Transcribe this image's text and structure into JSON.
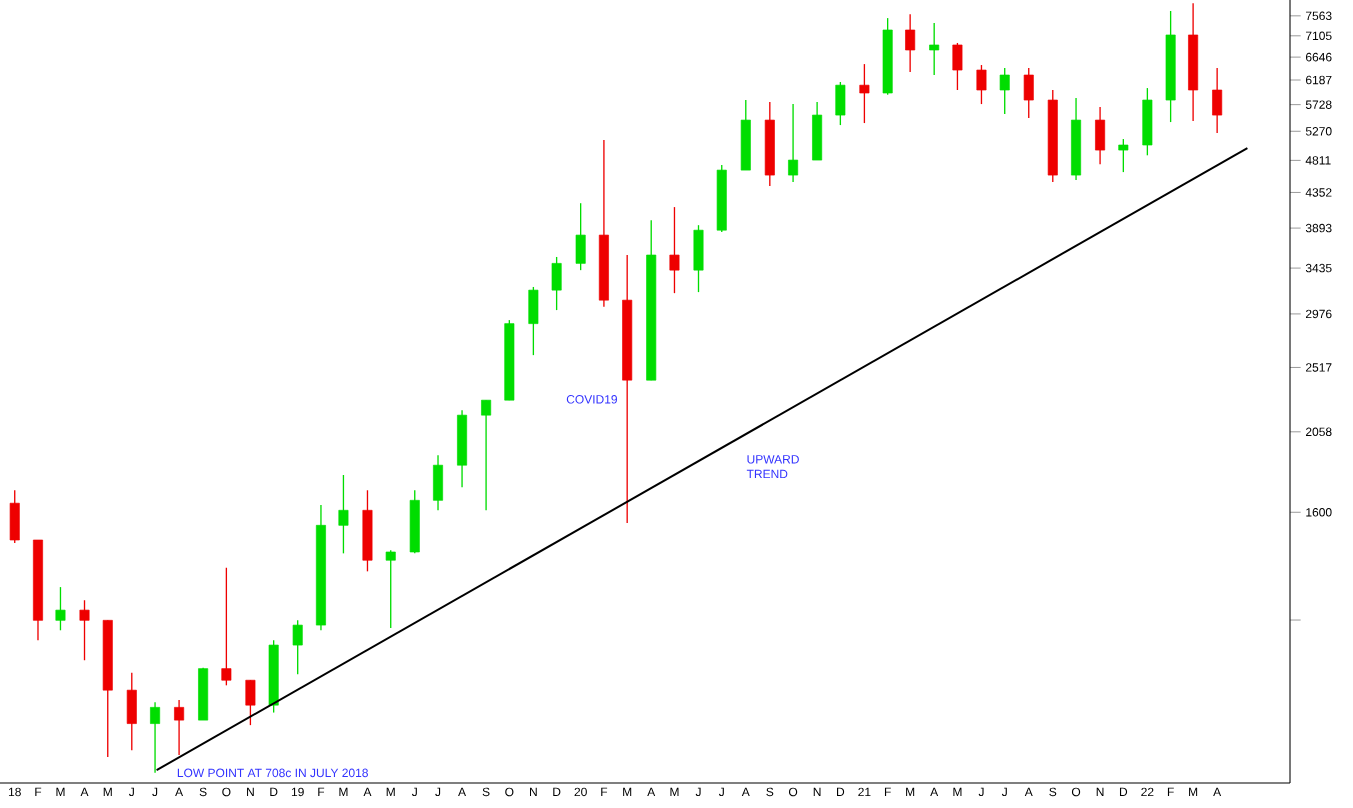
{
  "chart_data": {
    "type": "candlestick",
    "log": true,
    "x": [
      "2018-01-16",
      "2018-02-15",
      "2018-03-16",
      "2018-04-16",
      "2018-05-16",
      "2018-06-16",
      "2018-07-16",
      "2018-08-16",
      "2018-09-16",
      "2018-10-16",
      "2018-11-16",
      "2018-12-16",
      "2019-01-16",
      "2019-02-15",
      "2019-03-16",
      "2019-04-16",
      "2019-05-16",
      "2019-06-16",
      "2019-07-16",
      "2019-08-16",
      "2019-09-16",
      "2019-10-16",
      "2019-11-16",
      "2019-12-16",
      "2020-01-16",
      "2020-02-15",
      "2020-03-16",
      "2020-04-16",
      "2020-05-16",
      "2020-06-16",
      "2020-07-16",
      "2020-08-16",
      "2020-09-16",
      "2020-10-16",
      "2020-11-16",
      "2020-12-16",
      "2021-01-16",
      "2021-02-15",
      "2021-03-16",
      "2021-04-16",
      "2021-05-16",
      "2021-06-16",
      "2021-07-16",
      "2021-08-16",
      "2021-09-16",
      "2021-10-16",
      "2021-11-16",
      "2021-12-16",
      "2022-01-16",
      "2022-02-15",
      "2022-03-16",
      "2022-04-16"
    ],
    "ohlc": [
      [
        1646,
        1714,
        1453,
        1467
      ],
      [
        1467,
        1467,
        1072,
        1141
      ],
      [
        1141,
        1266,
        1106,
        1178
      ],
      [
        1178,
        1215,
        1007,
        1141
      ],
      [
        1141,
        1141,
        744,
        917
      ],
      [
        917,
        968,
        760,
        826
      ],
      [
        826,
        883,
        708,
        869
      ],
      [
        869,
        889,
        749,
        835
      ],
      [
        835,
        984,
        835,
        981
      ],
      [
        981,
        1345,
        931,
        946
      ],
      [
        946,
        946,
        822,
        875
      ],
      [
        875,
        1072,
        855,
        1056
      ],
      [
        1056,
        1141,
        964,
        1124
      ],
      [
        1124,
        1637,
        1106,
        1536
      ],
      [
        1536,
        1798,
        1407,
        1610
      ],
      [
        1610,
        1714,
        1330,
        1377
      ],
      [
        1377,
        1421,
        1114,
        1413
      ],
      [
        1413,
        1714,
        1408,
        1661
      ],
      [
        1661,
        1913,
        1610,
        1854
      ],
      [
        1854,
        2202,
        1730,
        2168
      ],
      [
        2168,
        2272,
        1610,
        2272
      ],
      [
        2272,
        2919,
        2272,
        2887
      ],
      [
        2887,
        3238,
        2616,
        3206
      ],
      [
        3206,
        3557,
        3012,
        3486
      ],
      [
        3486,
        4208,
        3413,
        3809
      ],
      [
        3809,
        5127,
        3043,
        3107
      ],
      [
        3107,
        3578,
        1547,
        2419
      ],
      [
        2419,
        3991,
        2419,
        3578
      ],
      [
        3578,
        4157,
        3176,
        3413
      ],
      [
        3413,
        3929,
        3186,
        3868
      ],
      [
        3868,
        4741,
        3845,
        4667
      ],
      [
        4667,
        5811,
        4667,
        5458
      ],
      [
        5458,
        5775,
        4440,
        4595
      ],
      [
        4595,
        5740,
        4495,
        4816
      ],
      [
        4816,
        5775,
        4816,
        5544
      ],
      [
        5544,
        6148,
        5373,
        6088
      ],
      [
        6088,
        6503,
        5407,
        5940
      ],
      [
        5940,
        7510,
        5909,
        7235
      ],
      [
        7235,
        7600,
        6343,
        6796
      ],
      [
        6796,
        7395,
        6284,
        6904
      ],
      [
        6904,
        6947,
        5996,
        6383
      ],
      [
        6383,
        6484,
        5738,
        5996
      ],
      [
        5996,
        6423,
        5562,
        6284
      ],
      [
        6284,
        6423,
        5492,
        5811
      ],
      [
        5811,
        5996,
        4495,
        4595
      ],
      [
        4595,
        5847,
        4524,
        5458
      ],
      [
        5458,
        5685,
        4753,
        4969
      ],
      [
        4969,
        5143,
        4638,
        5048
      ],
      [
        5048,
        6033,
        4888,
        5811
      ],
      [
        5811,
        7678,
        5424,
        7123
      ],
      [
        7123,
        7870,
        5441,
        5996
      ],
      [
        5996,
        6423,
        5241,
        5544
      ]
    ],
    "colors": [
      "#ee0000",
      "#ee0000",
      "#00dd00",
      "#ee0000",
      "#ee0000",
      "#ee0000",
      "#00dd00",
      "#ee0000",
      "#00dd00",
      "#ee0000",
      "#ee0000",
      "#00dd00",
      "#00dd00",
      "#00dd00",
      "#00dd00",
      "#ee0000",
      "#00dd00",
      "#00dd00",
      "#00dd00",
      "#00dd00",
      "#00dd00",
      "#00dd00",
      "#00dd00",
      "#00dd00",
      "#00dd00",
      "#ee0000",
      "#ee0000",
      "#00dd00",
      "#ee0000",
      "#00dd00",
      "#00dd00",
      "#00dd00",
      "#ee0000",
      "#00dd00",
      "#00dd00",
      "#00dd00",
      "#ee0000",
      "#00dd00",
      "#ee0000",
      "#00dd00",
      "#ee0000",
      "#ee0000",
      "#00dd00",
      "#ee0000",
      "#ee0000",
      "#00dd00",
      "#ee0000",
      "#00dd00",
      "#00dd00",
      "#00dd00",
      "#ee0000",
      "#ee0000"
    ],
    "series": [
      {
        "type": "line",
        "x": [
          "2018-07-18",
          "2022-05-25"
        ],
        "values": [
          714,
          5000
        ],
        "color": "#000000"
      }
    ],
    "xlim": [
      "2017-12-28",
      "2022-07-19"
    ],
    "ylim": [
      686,
      7948
    ],
    "yticks": [
      {
        "value": 1142,
        "label": null
      },
      1600,
      2058,
      2517,
      2976,
      3435,
      3893,
      4352,
      4811,
      5270,
      5728,
      6187,
      6646,
      7105,
      7563
    ],
    "xticks": [
      {
        "value": "2018-01-16",
        "label": "18"
      },
      {
        "value": "2018-02-15",
        "label": "F"
      },
      {
        "value": "2018-03-16",
        "label": "M"
      },
      {
        "value": "2018-04-16",
        "label": "A"
      },
      {
        "value": "2018-05-16",
        "label": "M"
      },
      {
        "value": "2018-06-16",
        "label": "J"
      },
      {
        "value": "2018-07-16",
        "label": "J"
      },
      {
        "value": "2018-08-16",
        "label": "A"
      },
      {
        "value": "2018-09-16",
        "label": "S"
      },
      {
        "value": "2018-10-16",
        "label": "O"
      },
      {
        "value": "2018-11-16",
        "label": "N"
      },
      {
        "value": "2018-12-16",
        "label": "D"
      },
      {
        "value": "2019-01-16",
        "label": "19"
      },
      {
        "value": "2019-02-15",
        "label": "F"
      },
      {
        "value": "2019-03-16",
        "label": "M"
      },
      {
        "value": "2019-04-16",
        "label": "A"
      },
      {
        "value": "2019-05-16",
        "label": "M"
      },
      {
        "value": "2019-06-16",
        "label": "J"
      },
      {
        "value": "2019-07-16",
        "label": "J"
      },
      {
        "value": "2019-08-16",
        "label": "A"
      },
      {
        "value": "2019-09-16",
        "label": "S"
      },
      {
        "value": "2019-10-16",
        "label": "O"
      },
      {
        "value": "2019-11-16",
        "label": "N"
      },
      {
        "value": "2019-12-16",
        "label": "D"
      },
      {
        "value": "2020-01-16",
        "label": "20"
      },
      {
        "value": "2020-02-15",
        "label": "F"
      },
      {
        "value": "2020-03-16",
        "label": "M"
      },
      {
        "value": "2020-04-16",
        "label": "A"
      },
      {
        "value": "2020-05-16",
        "label": "M"
      },
      {
        "value": "2020-06-16",
        "label": "J"
      },
      {
        "value": "2020-07-16",
        "label": "J"
      },
      {
        "value": "2020-08-16",
        "label": "A"
      },
      {
        "value": "2020-09-16",
        "label": "S"
      },
      {
        "value": "2020-10-16",
        "label": "O"
      },
      {
        "value": "2020-11-16",
        "label": "N"
      },
      {
        "value": "2020-12-16",
        "label": "D"
      },
      {
        "value": "2021-01-16",
        "label": "21"
      },
      {
        "value": "2021-02-15",
        "label": "F"
      },
      {
        "value": "2021-03-16",
        "label": "M"
      },
      {
        "value": "2021-04-16",
        "label": "A"
      },
      {
        "value": "2021-05-16",
        "label": "M"
      },
      {
        "value": "2021-06-16",
        "label": "J"
      },
      {
        "value": "2021-07-16",
        "label": "J"
      },
      {
        "value": "2021-08-16",
        "label": "A"
      },
      {
        "value": "2021-09-16",
        "label": "S"
      },
      {
        "value": "2021-10-16",
        "label": "O"
      },
      {
        "value": "2021-11-16",
        "label": "N"
      },
      {
        "value": "2021-12-16",
        "label": "D"
      },
      {
        "value": "2022-01-16",
        "label": "22"
      },
      {
        "value": "2022-02-15",
        "label": "F"
      },
      {
        "value": "2022-03-16",
        "label": "M"
      },
      {
        "value": "2022-04-16",
        "label": "A"
      }
    ],
    "annotations": [
      {
        "text": "LOW POINT AT 708c IN JULY 2018",
        "x": "2018-07-18",
        "y": 708
      },
      "COVID19",
      "UPWARD TREND"
    ]
  }
}
